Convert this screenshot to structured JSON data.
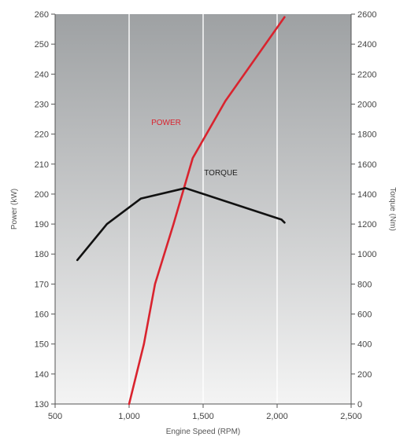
{
  "chart_data": {
    "type": "line",
    "title": "",
    "xlabel": "Engine Speed (RPM)",
    "ylabel_left": "Power (kW)",
    "ylabel_right": "Torque (Nm)",
    "xlim": [
      500,
      2500
    ],
    "ylim_left": [
      130,
      260
    ],
    "ylim_right": [
      0,
      2600
    ],
    "grid": true,
    "legend": "none (inline series labels)",
    "x_ticks": [
      500,
      1000,
      1500,
      2000,
      2500
    ],
    "x_tick_labels": [
      "500",
      "1,000",
      "1,500",
      "2,000",
      "2,500"
    ],
    "y_left_ticks": [
      130,
      140,
      150,
      160,
      170,
      180,
      190,
      200,
      210,
      220,
      230,
      240,
      250,
      260
    ],
    "y_left_tick_labels": [
      "130",
      "140",
      "150",
      "160",
      "170",
      "180",
      "190",
      "200",
      "210",
      "220",
      "230",
      "240",
      "250",
      "260"
    ],
    "y_right_ticks": [
      0,
      200,
      400,
      600,
      800,
      1000,
      1200,
      1400,
      1600,
      1800,
      2000,
      2200,
      2400,
      2600
    ],
    "y_right_tick_labels": [
      "0",
      "200",
      "400",
      "600",
      "800",
      "1000",
      "1200",
      "1400",
      "1600",
      "1800",
      "2000",
      "2200",
      "2400",
      "2600"
    ],
    "series": [
      {
        "name": "POWER",
        "axis": "left",
        "color": "#d9232e",
        "x": [
          1000,
          1100,
          1175,
          1300,
          1430,
          1650,
          2050
        ],
        "y": [
          130,
          150,
          170,
          190,
          212,
          231,
          259
        ]
      },
      {
        "name": "TORQUE",
        "axis": "right",
        "color": "#111111",
        "x": [
          650,
          850,
          1080,
          1380,
          2030,
          2050
        ],
        "y": [
          960,
          1200,
          1370,
          1440,
          1230,
          1210
        ]
      }
    ]
  }
}
